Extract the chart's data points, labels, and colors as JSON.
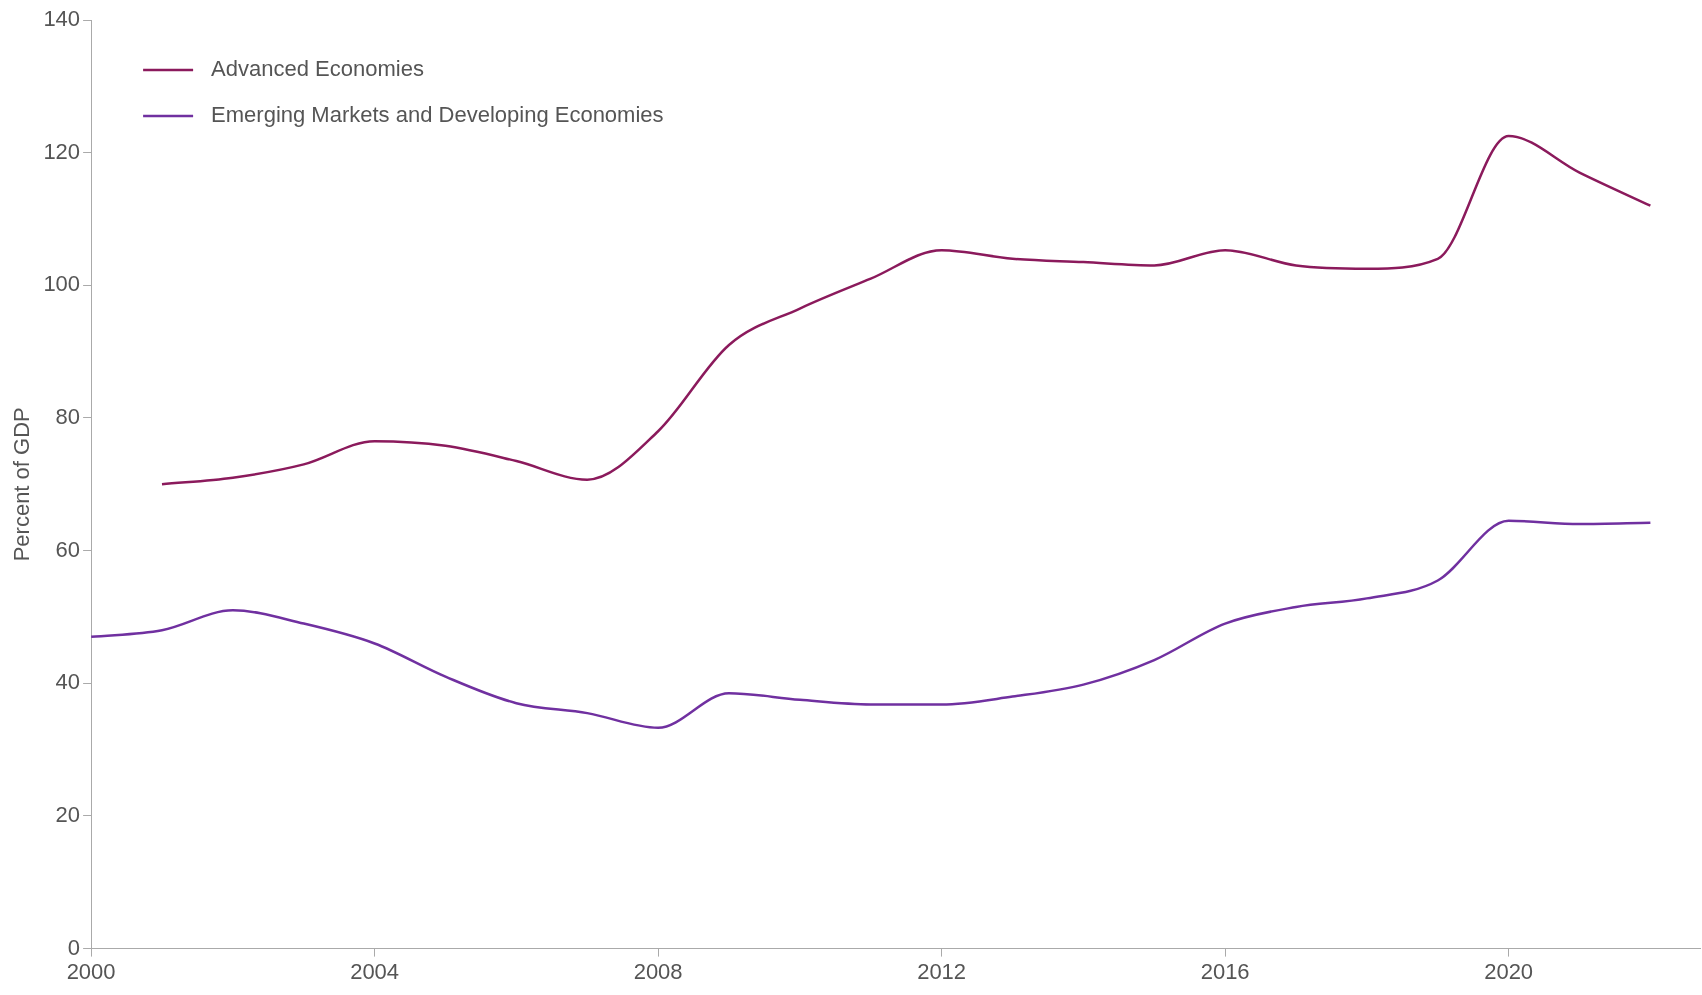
{
  "chart_data": {
    "type": "line",
    "ylabel": "Percent of GDP",
    "x": [
      2000,
      2001,
      2002,
      2003,
      2004,
      2005,
      2006,
      2007,
      2008,
      2009,
      2010,
      2011,
      2012,
      2013,
      2014,
      2015,
      2016,
      2017,
      2018,
      2019,
      2020,
      2021,
      2022
    ],
    "series": [
      {
        "name": "Advanced Economies",
        "color": "#8b1a5c",
        "values": [
          null,
          70,
          71,
          73,
          76.5,
          75.8,
          73.5,
          70.7,
          78,
          91,
          96.5,
          101,
          105.3,
          104,
          103.5,
          103,
          105.3,
          103,
          102.5,
          104,
          122.5,
          117,
          112
        ]
      },
      {
        "name": "Emerging Markets and Developing Economies",
        "color": "#7030a0",
        "values": [
          47,
          48,
          51,
          49,
          46,
          41,
          37,
          35.5,
          33.3,
          38.5,
          37.5,
          36.8,
          36.8,
          38,
          39.8,
          43.5,
          49,
          51.5,
          52.8,
          55.5,
          64.5,
          64,
          64.2
        ]
      }
    ],
    "xlim": [
      2000,
      2022.7
    ],
    "xticks": [
      2000,
      2004,
      2008,
      2012,
      2016,
      2020
    ],
    "ylim": [
      0,
      140
    ],
    "yticks": [
      0,
      20,
      40,
      60,
      80,
      100,
      120,
      140
    ],
    "grid": false,
    "legend": "top left",
    "marker": "none",
    "line_style": "solid"
  }
}
